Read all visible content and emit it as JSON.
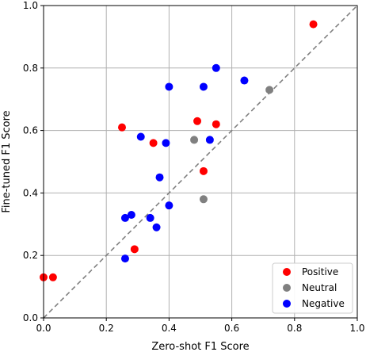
{
  "chart_data": {
    "type": "scatter",
    "xlabel": "Zero-shot F1 Score",
    "ylabel": "Fine-tuned F1 Score",
    "xlim": [
      0,
      1
    ],
    "ylim": [
      0,
      1
    ],
    "x_ticks": [
      "0.0",
      "0.2",
      "0.4",
      "0.6",
      "0.8",
      "1.0"
    ],
    "y_ticks": [
      "0.0",
      "0.2",
      "0.4",
      "0.6",
      "0.8",
      "1.0"
    ],
    "grid": true,
    "diagonal_reference_line": true,
    "legend_position": "lower-right",
    "series": [
      {
        "name": "Positive",
        "color": "#ff0000",
        "points": [
          {
            "x": 0.0,
            "y": 0.13
          },
          {
            "x": 0.03,
            "y": 0.13
          },
          {
            "x": 0.25,
            "y": 0.61
          },
          {
            "x": 0.29,
            "y": 0.22
          },
          {
            "x": 0.35,
            "y": 0.56
          },
          {
            "x": 0.49,
            "y": 0.63
          },
          {
            "x": 0.51,
            "y": 0.47
          },
          {
            "x": 0.55,
            "y": 0.62
          },
          {
            "x": 0.86,
            "y": 0.94
          }
        ]
      },
      {
        "name": "Neutral",
        "color": "#808080",
        "points": [
          {
            "x": 0.48,
            "y": 0.57
          },
          {
            "x": 0.51,
            "y": 0.38
          },
          {
            "x": 0.72,
            "y": 0.73
          }
        ]
      },
      {
        "name": "Negative",
        "color": "#0000ff",
        "points": [
          {
            "x": 0.26,
            "y": 0.19
          },
          {
            "x": 0.26,
            "y": 0.32
          },
          {
            "x": 0.28,
            "y": 0.33
          },
          {
            "x": 0.31,
            "y": 0.58
          },
          {
            "x": 0.34,
            "y": 0.32
          },
          {
            "x": 0.36,
            "y": 0.29
          },
          {
            "x": 0.37,
            "y": 0.45
          },
          {
            "x": 0.39,
            "y": 0.56
          },
          {
            "x": 0.4,
            "y": 0.36
          },
          {
            "x": 0.4,
            "y": 0.74
          },
          {
            "x": 0.51,
            "y": 0.74
          },
          {
            "x": 0.53,
            "y": 0.57
          },
          {
            "x": 0.55,
            "y": 0.8
          },
          {
            "x": 0.64,
            "y": 0.76
          }
        ]
      }
    ]
  }
}
